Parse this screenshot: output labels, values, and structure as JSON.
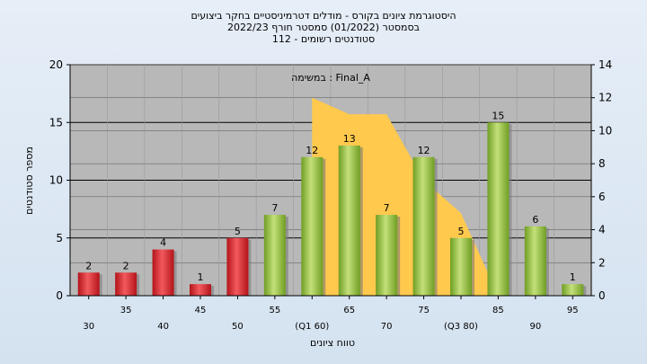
{
  "chart_data": {
    "type": "bar",
    "title_lines": [
      "היסטוגרמת ציונים בקורס - מודלים דטרמיניסטיים בחקר ביצועים",
      "בסמסטר  (01/2022)  סמסטר חורף  2022/23",
      "סטודנטים רשומים - 112"
    ],
    "xlabel": "טווח ציונים",
    "ylabel": "מספר סטודנטים",
    "annotation": "במשימה : Final_A",
    "ylim": [
      0,
      20
    ],
    "y2lim": [
      0,
      14
    ],
    "yticks": [
      0,
      5,
      10,
      15,
      20
    ],
    "y2ticks": [
      0,
      2,
      4,
      6,
      8,
      10,
      12,
      14
    ],
    "grid": true,
    "categories": [
      "30",
      "35",
      "40",
      "45",
      "50",
      "55",
      "(Q1 60)",
      "65",
      "70",
      "75",
      "(Q3 80)",
      "85",
      "90",
      "95"
    ],
    "values": [
      2,
      2,
      4,
      1,
      5,
      7,
      12,
      13,
      7,
      12,
      5,
      15,
      6,
      1
    ],
    "bar_colors": [
      "red",
      "red",
      "red",
      "red",
      "red",
      "green",
      "green",
      "green",
      "green",
      "green",
      "green",
      "green",
      "green",
      "green"
    ],
    "area_values": [
      null,
      null,
      null,
      null,
      null,
      null,
      12,
      11,
      11,
      7,
      5,
      0,
      null,
      null
    ],
    "colors": {
      "red": "#e0262b",
      "green": "#8dbf3a",
      "area": "#ffc94d",
      "plot_bg": "#b8b8b8"
    }
  }
}
